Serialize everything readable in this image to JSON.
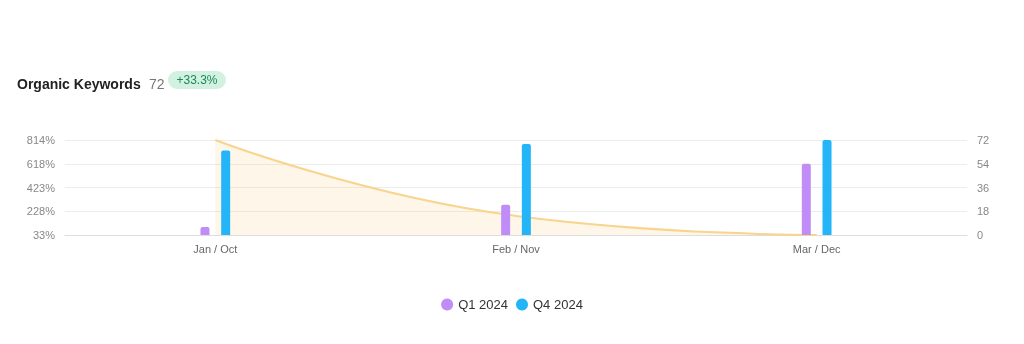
{
  "chart_data": {
    "type": "bar",
    "title": "Organic Keywords",
    "subtitle": "72",
    "annotations": [
      "+33.3%"
    ],
    "categories": [
      "Jan / Oct",
      "Feb / Nov",
      "Mar / Dec"
    ],
    "series": [
      {
        "type": "area",
        "color": "#f8d48c",
        "values": [
          814,
          190,
          33
        ]
      },
      {
        "name": "Q1 2024",
        "color": "#c08cf8",
        "axis": "y2",
        "values": [
          6,
          23,
          54
        ]
      },
      {
        "name": "Q4 2024",
        "color": "#24b4f8",
        "axis": "y2",
        "values": [
          64,
          69,
          72
        ]
      }
    ],
    "ylim": [
      33,
      814
    ],
    "yticks": [
      {
        "value": 33,
        "label": "33%"
      },
      {
        "value": 228,
        "label": "228%"
      },
      {
        "value": 423,
        "label": "423%"
      },
      {
        "value": 618,
        "label": "618%"
      },
      {
        "value": 814,
        "label": "814%"
      }
    ],
    "y2lim": [
      0,
      72
    ],
    "y2ticks": [
      0,
      18,
      36,
      54,
      72
    ],
    "grid": "y",
    "legend": "bottom"
  }
}
